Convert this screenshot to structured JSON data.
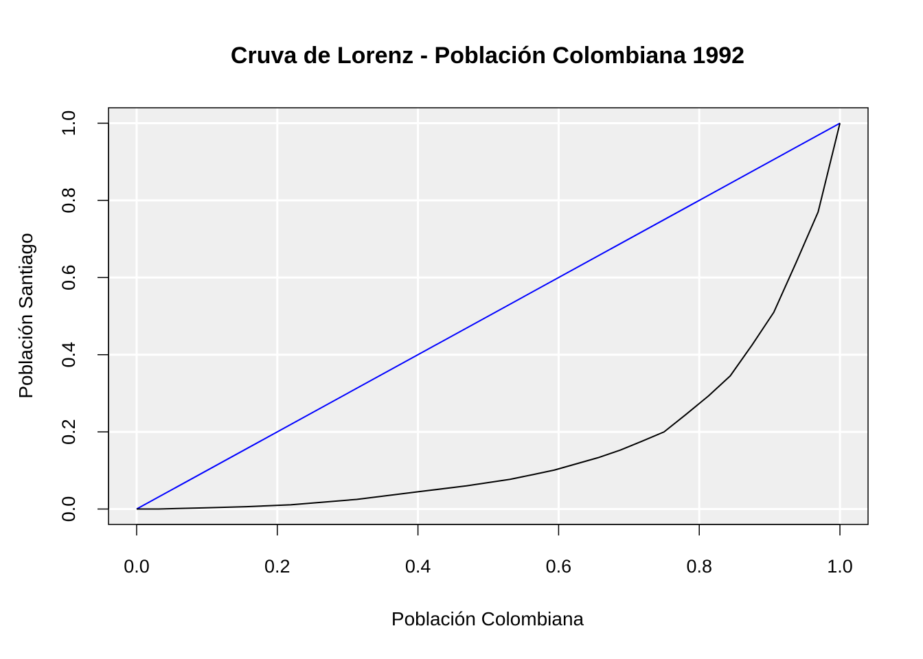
{
  "chart_data": {
    "type": "line",
    "title": "Cruva de Lorenz - Población Colombiana 1992",
    "xlabel": "Población Colombiana",
    "ylabel": "Población Santiago",
    "xlim": [
      -0.04,
      1.04
    ],
    "ylim": [
      -0.04,
      1.04
    ],
    "xticks": [
      "0.0",
      "0.2",
      "0.4",
      "0.6",
      "0.8",
      "1.0"
    ],
    "yticks": [
      "0.0",
      "0.2",
      "0.4",
      "0.6",
      "0.8",
      "1.0"
    ],
    "grid": true,
    "background": "#efefef",
    "series": [
      {
        "color": "#0000ff",
        "x": [
          0,
          1
        ],
        "y": [
          0,
          1
        ]
      },
      {
        "color": "#000000",
        "x": [
          0,
          0.031,
          0.094,
          0.156,
          0.219,
          0.313,
          0.406,
          0.469,
          0.531,
          0.563,
          0.594,
          0.625,
          0.656,
          0.688,
          0.719,
          0.75,
          0.781,
          0.813,
          0.844,
          0.875,
          0.906,
          0.938,
          0.969,
          1.0
        ],
        "y": [
          0,
          0,
          0.003,
          0.006,
          0.011,
          0.025,
          0.046,
          0.06,
          0.077,
          0.089,
          0.101,
          0.117,
          0.133,
          0.153,
          0.176,
          0.2,
          0.245,
          0.293,
          0.345,
          0.425,
          0.51,
          0.64,
          0.77,
          1.0
        ]
      }
    ]
  }
}
